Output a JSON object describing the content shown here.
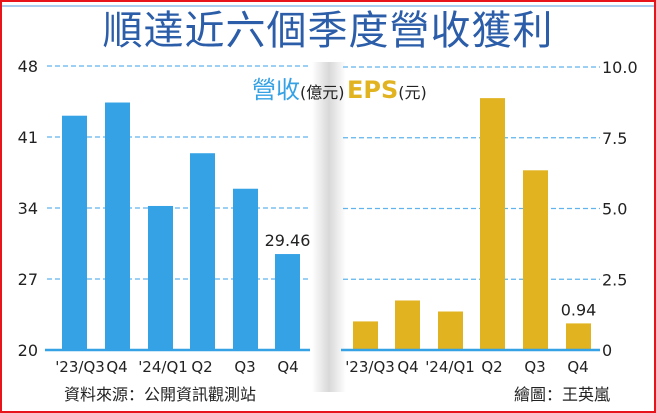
{
  "title": "順達近六個季度營收獲利",
  "colors": {
    "revenue": "#35a2e6",
    "eps": "#e2b320",
    "title": "#2b5da9",
    "grid": "#5fb4ee",
    "border": "#e8141c"
  },
  "source": "資料來源：公開資訊觀測站",
  "credit": "繪圖：王英嵐",
  "chart_data": [
    {
      "type": "bar",
      "title": "營收",
      "unit": "(億元)",
      "categories": [
        "'23/Q3",
        "Q4",
        "'24/Q1",
        "Q2",
        "Q3",
        "Q4"
      ],
      "values": [
        43.1,
        44.4,
        34.2,
        39.4,
        35.9,
        29.46
      ],
      "data_labels": [
        "",
        "",
        "",
        "",
        "",
        "29.46"
      ],
      "yticks": [
        "20",
        "27",
        "34",
        "41",
        "48"
      ],
      "ylim": [
        20,
        48
      ],
      "axis_side": "left",
      "grid": true
    },
    {
      "type": "bar",
      "title": "EPS",
      "unit": "(元)",
      "categories": [
        "'23/Q3",
        "Q4",
        "'24/Q1",
        "Q2",
        "Q3",
        "Q4"
      ],
      "values": [
        1.01,
        1.75,
        1.36,
        8.9,
        6.35,
        0.94
      ],
      "data_labels": [
        "",
        "",
        "",
        "",
        "",
        "0.94"
      ],
      "yticks": [
        "0",
        "2.5",
        "5.0",
        "7.5",
        "10.0"
      ],
      "ylim": [
        0,
        10
      ],
      "axis_side": "right",
      "grid": true
    }
  ]
}
